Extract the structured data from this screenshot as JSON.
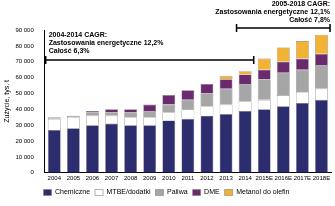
{
  "chart_data": {
    "type": "bar",
    "stacked": true,
    "y_label": "Zużycie, tys. t",
    "categories": [
      "2004",
      "2005",
      "2006",
      "2007",
      "2008",
      "2009",
      "2010",
      "2011",
      "2012",
      "2013",
      "2014",
      "2015E",
      "2016E",
      "2017E",
      "2018E"
    ],
    "series": [
      {
        "name": "Chemiczne",
        "color": "#2b2d6e",
        "values": [
          27000,
          28000,
          30000,
          31000,
          30000,
          30000,
          33000,
          34000,
          36000,
          37000,
          39000,
          40000,
          42000,
          44000,
          46000
        ]
      },
      {
        "name": "MTBE/dodatki",
        "color": "#ffffff",
        "values": [
          7000,
          7000,
          6000,
          5000,
          5000,
          5000,
          5000,
          6000,
          6000,
          6000,
          6000,
          6000,
          7000,
          7000,
          7000
        ]
      },
      {
        "name": "Paliwa",
        "color": "#a6a6a6",
        "values": [
          1000,
          1000,
          2000,
          2000,
          3000,
          4000,
          5000,
          6000,
          8000,
          10000,
          11000,
          13000,
          14000,
          14000,
          15000
        ]
      },
      {
        "name": "DME",
        "color": "#6b2a6e",
        "values": [
          0,
          0,
          1000,
          2000,
          2000,
          4000,
          6000,
          6000,
          6000,
          6000,
          6000,
          6000,
          7000,
          7000,
          7000
        ]
      },
      {
        "name": "Metanol do olefin",
        "color": "#f2b233",
        "values": [
          0,
          0,
          0,
          0,
          0,
          0,
          0,
          0,
          0,
          2000,
          2000,
          7000,
          9000,
          11000,
          12000
        ]
      }
    ],
    "ylim": [
      0,
      90000
    ],
    "yticks": [
      0,
      {
        "value": 10000,
        "label": "10 000"
      },
      {
        "value": 20000,
        "label": "20 000"
      },
      {
        "value": 30000,
        "label": "30 000"
      },
      {
        "value": 40000,
        "label": "40 000"
      },
      {
        "value": 50000,
        "label": "50 000"
      },
      {
        "value": 60000,
        "label": "60 000"
      },
      {
        "value": 70000,
        "label": "70 000"
      },
      {
        "value": 80000,
        "label": "80 000"
      },
      {
        "value": 90000,
        "label": "90 000"
      }
    ],
    "grid": false,
    "legend": "bottom",
    "annotations": [
      {
        "text": [
          "2004-2014 CAGR:",
          "Zastosowania energetyczne 12,2%",
          "Całość 6,3%"
        ],
        "start": "2004",
        "end": "2014"
      },
      {
        "text": [
          "2005-2018 CAGR:",
          "Zastosowania energetyczne 12,1%",
          "Całość 7,8%"
        ],
        "start": "2014",
        "end": "2018E"
      }
    ]
  }
}
